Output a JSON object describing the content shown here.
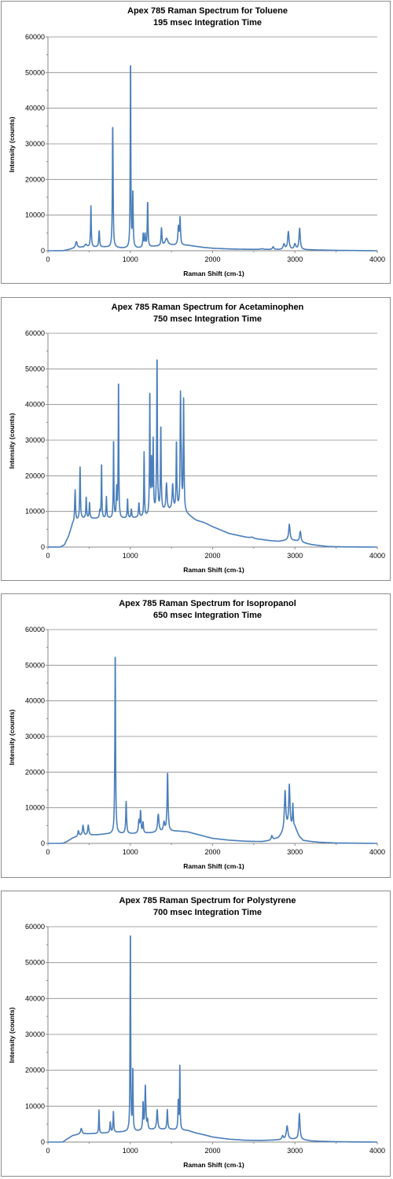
{
  "chart_data": [
    {
      "type": "line",
      "title": "Apex 785 Raman Spectrum for Toluene",
      "subtitle": "195 msec Integration Time",
      "xlabel": "Raman Shift (cm-1)",
      "ylabel": "Intensity (counts)",
      "xlim": [
        0,
        4000
      ],
      "ylim": [
        0,
        60000
      ],
      "xticks": [
        0,
        1000,
        2000,
        3000,
        4000
      ],
      "yticks": [
        0,
        10000,
        20000,
        30000,
        40000,
        50000,
        60000
      ],
      "grid": true,
      "line_color": "#4a7ebb",
      "baseline": [
        [
          0,
          0
        ],
        [
          180,
          0
        ],
        [
          230,
          200
        ],
        [
          300,
          600
        ],
        [
          400,
          900
        ],
        [
          500,
          1000
        ],
        [
          700,
          1000
        ],
        [
          900,
          700
        ],
        [
          1100,
          700
        ],
        [
          1300,
          1200
        ],
        [
          1500,
          1500
        ],
        [
          1700,
          1500
        ],
        [
          1800,
          1200
        ],
        [
          1900,
          900
        ],
        [
          2000,
          700
        ],
        [
          2200,
          500
        ],
        [
          2400,
          400
        ],
        [
          2600,
          350
        ],
        [
          2800,
          300
        ],
        [
          3000,
          300
        ],
        [
          3200,
          250
        ],
        [
          3400,
          150
        ],
        [
          3600,
          80
        ],
        [
          4000,
          0
        ]
      ],
      "peaks": [
        {
          "x": 345,
          "h": 1800,
          "w": 12
        },
        {
          "x": 460,
          "h": 800,
          "w": 15
        },
        {
          "x": 522,
          "h": 11500,
          "w": 5
        },
        {
          "x": 622,
          "h": 4500,
          "w": 6
        },
        {
          "x": 787,
          "h": 35000,
          "w": 5
        },
        {
          "x": 1003,
          "h": 53800,
          "w": 4
        },
        {
          "x": 1031,
          "h": 15500,
          "w": 5
        },
        {
          "x": 1157,
          "h": 3800,
          "w": 6
        },
        {
          "x": 1180,
          "h": 3500,
          "w": 6
        },
        {
          "x": 1211,
          "h": 12800,
          "w": 5
        },
        {
          "x": 1379,
          "h": 5000,
          "w": 6
        },
        {
          "x": 1440,
          "h": 2000,
          "w": 20
        },
        {
          "x": 1585,
          "h": 5000,
          "w": 8
        },
        {
          "x": 1605,
          "h": 7500,
          "w": 6
        },
        {
          "x": 2600,
          "h": 200,
          "w": 20
        },
        {
          "x": 2735,
          "h": 800,
          "w": 10
        },
        {
          "x": 2867,
          "h": 1500,
          "w": 12
        },
        {
          "x": 2920,
          "h": 5000,
          "w": 10
        },
        {
          "x": 3000,
          "h": 1500,
          "w": 12
        },
        {
          "x": 3057,
          "h": 6000,
          "w": 9
        }
      ]
    },
    {
      "type": "line",
      "title": "Apex 785 Raman Spectrum for Acetaminophen",
      "subtitle": "750 msec Integration Time",
      "xlabel": "Raman Shift (cm-1)",
      "ylabel": "Intensity (counts)",
      "xlim": [
        0,
        4000
      ],
      "ylim": [
        0,
        60000
      ],
      "xticks": [
        0,
        1000,
        2000,
        3000,
        4000
      ],
      "yticks": [
        0,
        10000,
        20000,
        30000,
        40000,
        50000,
        60000
      ],
      "grid": true,
      "line_color": "#4a7ebb",
      "baseline": [
        [
          0,
          0
        ],
        [
          150,
          0
        ],
        [
          200,
          600
        ],
        [
          250,
          3000
        ],
        [
          300,
          6500
        ],
        [
          400,
          8000
        ],
        [
          600,
          8000
        ],
        [
          800,
          8000
        ],
        [
          1000,
          8000
        ],
        [
          1200,
          8500
        ],
        [
          1400,
          10000
        ],
        [
          1600,
          10500
        ],
        [
          1700,
          9000
        ],
        [
          1800,
          7500
        ],
        [
          1900,
          6800
        ],
        [
          2000,
          5700
        ],
        [
          2200,
          3800
        ],
        [
          2400,
          2800
        ],
        [
          2500,
          2400
        ],
        [
          2600,
          2100
        ],
        [
          2700,
          1800
        ],
        [
          2800,
          1600
        ],
        [
          2900,
          1900
        ],
        [
          3000,
          1800
        ],
        [
          3100,
          1200
        ],
        [
          3200,
          700
        ],
        [
          3300,
          400
        ],
        [
          3400,
          150
        ],
        [
          3600,
          50
        ],
        [
          4000,
          0
        ]
      ],
      "peaks": [
        {
          "x": 330,
          "h": 9000,
          "w": 6
        },
        {
          "x": 390,
          "h": 14500,
          "w": 5
        },
        {
          "x": 465,
          "h": 6000,
          "w": 5
        },
        {
          "x": 505,
          "h": 4500,
          "w": 5
        },
        {
          "x": 630,
          "h": 2000,
          "w": 6
        },
        {
          "x": 651,
          "h": 15700,
          "w": 4
        },
        {
          "x": 710,
          "h": 6000,
          "w": 5
        },
        {
          "x": 797,
          "h": 22500,
          "w": 4
        },
        {
          "x": 834,
          "h": 8000,
          "w": 5
        },
        {
          "x": 857,
          "h": 39500,
          "w": 4
        },
        {
          "x": 967,
          "h": 5500,
          "w": 5
        },
        {
          "x": 1013,
          "h": 2500,
          "w": 6
        },
        {
          "x": 1105,
          "h": 4000,
          "w": 6
        },
        {
          "x": 1168,
          "h": 18000,
          "w": 4
        },
        {
          "x": 1237,
          "h": 35000,
          "w": 4
        },
        {
          "x": 1258,
          "h": 14000,
          "w": 5
        },
        {
          "x": 1278,
          "h": 20000,
          "w": 5
        },
        {
          "x": 1325,
          "h": 44000,
          "w": 5
        },
        {
          "x": 1371,
          "h": 24000,
          "w": 5
        },
        {
          "x": 1440,
          "h": 7500,
          "w": 8
        },
        {
          "x": 1515,
          "h": 7000,
          "w": 8
        },
        {
          "x": 1561,
          "h": 19000,
          "w": 5
        },
        {
          "x": 1610,
          "h": 30000,
          "w": 5
        },
        {
          "x": 1620,
          "h": 10000,
          "w": 6
        },
        {
          "x": 1648,
          "h": 31000,
          "w": 5
        },
        {
          "x": 2480,
          "h": 300,
          "w": 20
        },
        {
          "x": 2932,
          "h": 4500,
          "w": 10
        },
        {
          "x": 3065,
          "h": 3000,
          "w": 10
        }
      ]
    },
    {
      "type": "line",
      "title": "Apex 785 Raman Spectrum for Isopropanol",
      "subtitle": "650 msec Integration Time",
      "xlabel": "Raman Shift (cm-1)",
      "ylabel": "Intensity (counts)",
      "xlim": [
        0,
        4000
      ],
      "ylim": [
        0,
        60000
      ],
      "xticks": [
        0,
        1000,
        2000,
        3000,
        4000
      ],
      "yticks": [
        0,
        10000,
        20000,
        30000,
        40000,
        50000,
        60000
      ],
      "grid": true,
      "line_color": "#4a7ebb",
      "baseline": [
        [
          0,
          0
        ],
        [
          180,
          0
        ],
        [
          230,
          500
        ],
        [
          300,
          1500
        ],
        [
          400,
          2200
        ],
        [
          600,
          2400
        ],
        [
          700,
          2600
        ],
        [
          900,
          2700
        ],
        [
          1100,
          2700
        ],
        [
          1300,
          3000
        ],
        [
          1500,
          3400
        ],
        [
          1600,
          3400
        ],
        [
          1700,
          3200
        ],
        [
          1800,
          2600
        ],
        [
          1900,
          2000
        ],
        [
          2000,
          1400
        ],
        [
          2200,
          900
        ],
        [
          2400,
          600
        ],
        [
          2600,
          500
        ],
        [
          2700,
          800
        ],
        [
          2800,
          1500
        ],
        [
          2900,
          4000
        ],
        [
          3000,
          4500
        ],
        [
          3050,
          2000
        ],
        [
          3100,
          800
        ],
        [
          3200,
          500
        ],
        [
          3300,
          300
        ],
        [
          3500,
          100
        ],
        [
          4000,
          0
        ]
      ],
      "peaks": [
        {
          "x": 370,
          "h": 1500,
          "w": 8
        },
        {
          "x": 426,
          "h": 2800,
          "w": 8
        },
        {
          "x": 490,
          "h": 2800,
          "w": 8
        },
        {
          "x": 817,
          "h": 51500,
          "w": 5
        },
        {
          "x": 950,
          "h": 9000,
          "w": 6
        },
        {
          "x": 1105,
          "h": 3500,
          "w": 8
        },
        {
          "x": 1125,
          "h": 6000,
          "w": 6
        },
        {
          "x": 1155,
          "h": 3000,
          "w": 6
        },
        {
          "x": 1340,
          "h": 5000,
          "w": 10
        },
        {
          "x": 1410,
          "h": 2500,
          "w": 10
        },
        {
          "x": 1453,
          "h": 16500,
          "w": 7
        },
        {
          "x": 2720,
          "h": 1200,
          "w": 10
        },
        {
          "x": 2880,
          "h": 11000,
          "w": 10
        },
        {
          "x": 2932,
          "h": 12000,
          "w": 9
        },
        {
          "x": 2975,
          "h": 6500,
          "w": 5
        }
      ]
    },
    {
      "type": "line",
      "title": "Apex 785 Raman Spectrum for Polystyrene",
      "subtitle": "700 msec Integration Time",
      "xlabel": "Raman Shift (cm-1)",
      "ylabel": "Intensity (counts)",
      "xlim": [
        0,
        4000
      ],
      "ylim": [
        0,
        60000
      ],
      "xticks": [
        0,
        1000,
        2000,
        3000,
        4000
      ],
      "yticks": [
        0,
        10000,
        20000,
        30000,
        40000,
        50000,
        60000
      ],
      "grid": true,
      "line_color": "#4a7ebb",
      "baseline": [
        [
          0,
          0
        ],
        [
          180,
          0
        ],
        [
          230,
          800
        ],
        [
          300,
          1800
        ],
        [
          400,
          2300
        ],
        [
          500,
          2300
        ],
        [
          700,
          2500
        ],
        [
          900,
          2800
        ],
        [
          1100,
          3000
        ],
        [
          1300,
          3500
        ],
        [
          1500,
          3500
        ],
        [
          1700,
          3200
        ],
        [
          1800,
          2500
        ],
        [
          1900,
          2000
        ],
        [
          2000,
          1400
        ],
        [
          2200,
          800
        ],
        [
          2400,
          500
        ],
        [
          2600,
          450
        ],
        [
          2800,
          600
        ],
        [
          3000,
          800
        ],
        [
          3100,
          600
        ],
        [
          3200,
          300
        ],
        [
          3400,
          150
        ],
        [
          3600,
          60
        ],
        [
          4000,
          0
        ]
      ],
      "peaks": [
        {
          "x": 405,
          "h": 1500,
          "w": 10
        },
        {
          "x": 620,
          "h": 6500,
          "w": 4
        },
        {
          "x": 757,
          "h": 3000,
          "w": 6
        },
        {
          "x": 795,
          "h": 6000,
          "w": 5
        },
        {
          "x": 1001,
          "h": 57500,
          "w": 4
        },
        {
          "x": 1031,
          "h": 17500,
          "w": 4
        },
        {
          "x": 1155,
          "h": 7500,
          "w": 5
        },
        {
          "x": 1183,
          "h": 12500,
          "w": 7
        },
        {
          "x": 1210,
          "h": 2500,
          "w": 6
        },
        {
          "x": 1327,
          "h": 5500,
          "w": 8
        },
        {
          "x": 1450,
          "h": 5500,
          "w": 6
        },
        {
          "x": 1583,
          "h": 8000,
          "w": 5
        },
        {
          "x": 1602,
          "h": 17500,
          "w": 4
        },
        {
          "x": 2850,
          "h": 1000,
          "w": 10
        },
        {
          "x": 2905,
          "h": 3800,
          "w": 12
        },
        {
          "x": 3054,
          "h": 7200,
          "w": 9
        }
      ]
    }
  ]
}
